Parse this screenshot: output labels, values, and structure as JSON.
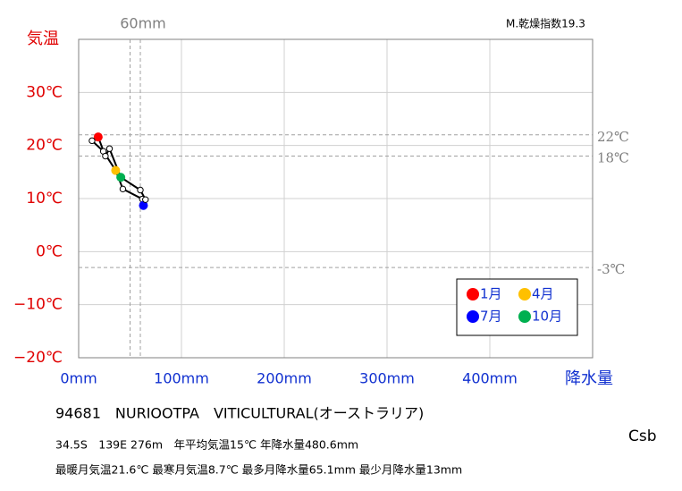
{
  "chart_data": {
    "type": "line",
    "x_label": "降水量",
    "y_label": "気温",
    "index_label": "M.乾燥指数19.3",
    "xlim": [
      0,
      500
    ],
    "ylim": [
      -20,
      40
    ],
    "xticks": [
      {
        "value": 0,
        "label": "0mm"
      },
      {
        "value": 100,
        "label": "100mm"
      },
      {
        "value": 200,
        "label": "200mm"
      },
      {
        "value": 300,
        "label": "300mm"
      },
      {
        "value": 400,
        "label": "400mm"
      }
    ],
    "yticks": [
      {
        "value": -20,
        "label": "−20℃"
      },
      {
        "value": -10,
        "label": "−10℃"
      },
      {
        "value": 0,
        "label": "0℃"
      },
      {
        "value": 10,
        "label": "10℃"
      },
      {
        "value": 20,
        "label": "20℃"
      },
      {
        "value": 30,
        "label": "30℃"
      }
    ],
    "ref_x": [
      {
        "value": 50
      },
      {
        "value": 60,
        "label": "60mm"
      }
    ],
    "ref_y": [
      {
        "value": 22,
        "label": "22℃"
      },
      {
        "value": 18,
        "label": "18℃"
      },
      {
        "value": -3,
        "label": "-3℃"
      }
    ],
    "x": [
      19,
      13,
      24,
      36,
      43,
      62,
      63,
      65,
      60,
      41,
      30,
      26
    ],
    "values": [
      21.6,
      20.9,
      18.9,
      15.3,
      11.8,
      9.9,
      8.7,
      9.8,
      11.6,
      14,
      19.4,
      18
    ],
    "markers": [
      {
        "name": "1月",
        "color": "#ff0000",
        "month": 1
      },
      {
        "name": "4月",
        "color": "#ffc000",
        "month": 4
      },
      {
        "name": "7月",
        "color": "#0000ff",
        "month": 7
      },
      {
        "name": "10月",
        "color": "#00b050",
        "month": 10
      }
    ],
    "station": "94681　NURIOOTPA　VITICULTURAL(オーストラリア)",
    "info_lines": [
      "34.5S　139E 276m　年平均気温15℃ 年降水量480.6mm",
      "最暖月気温21.6℃ 最寒月気温8.7℃ 最多月降水量65.1mm 最少月降水量13mm"
    ],
    "climate_class": "Csb"
  }
}
